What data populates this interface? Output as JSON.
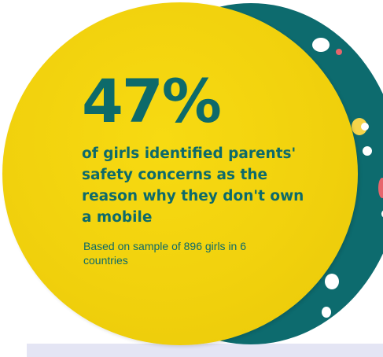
{
  "stat": {
    "value": "47%",
    "headline": "of girls identified parents' safety concerns as the reason why they don't own a mobile",
    "note": "Based on sample of 896 girls in 6 countries"
  },
  "colors": {
    "yellow": "#f1d10d",
    "teal": "#0d6b6e",
    "text": "#0d6a6a",
    "panel": "#e4e5f4"
  }
}
